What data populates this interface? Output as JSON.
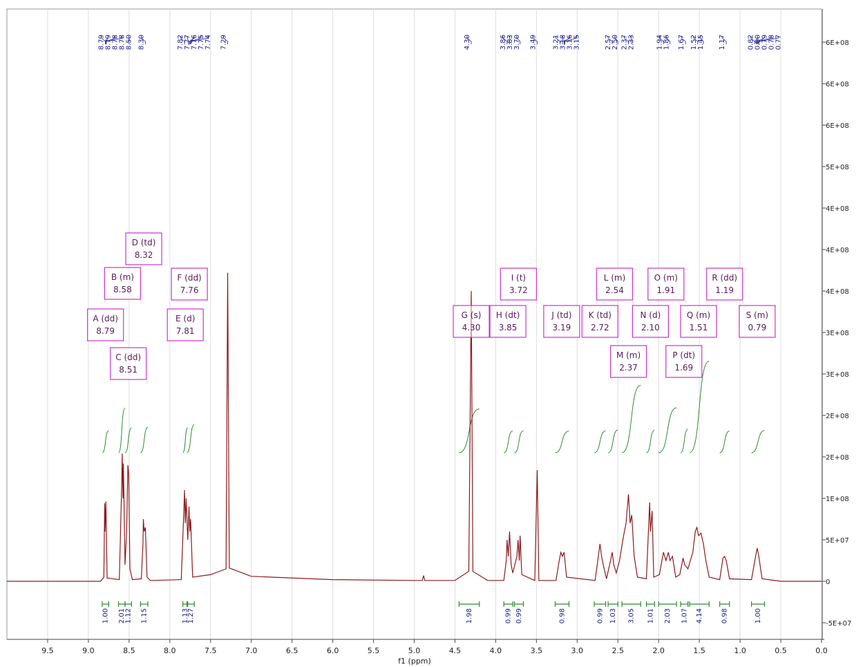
{
  "chart_data": {
    "type": "line",
    "xlabel": "f1 (ppm)",
    "xlim": [
      10,
      0
    ],
    "ylim": [
      -70000000,
      690000000
    ],
    "xticks": [
      9.5,
      {
        "value": 9,
        "label": "9.0"
      },
      8.5,
      {
        "value": 8,
        "label": "8.0"
      },
      7.5,
      {
        "value": 7,
        "label": "7.0"
      },
      6.5,
      {
        "value": 6,
        "label": "6.0"
      },
      5.5,
      {
        "value": 5,
        "label": "5.0"
      },
      4.5,
      {
        "value": 4,
        "label": "4.0"
      },
      3.5,
      {
        "value": 3,
        "label": "3.0"
      },
      2.5,
      {
        "value": 2,
        "label": "2.0"
      },
      1.5,
      {
        "value": 1,
        "label": "1.0"
      },
      0.5,
      {
        "value": 0,
        "label": "0.0"
      }
    ],
    "yticks": [
      {
        "value": -50000000,
        "label": "-5E+07"
      },
      0,
      {
        "value": 50000000,
        "label": "5E+07"
      },
      {
        "value": 100000000,
        "label": "1E+08"
      },
      {
        "value": 150000000,
        "label": "2E+08"
      },
      {
        "value": 200000000,
        "label": "2E+08"
      },
      {
        "value": 250000000,
        "label": "3E+08"
      },
      {
        "value": 300000000,
        "label": "3E+08"
      },
      {
        "value": 350000000,
        "label": "4E+08"
      },
      {
        "value": 400000000,
        "label": "4E+08"
      },
      {
        "value": 450000000,
        "label": "4E+08"
      },
      {
        "value": 500000000,
        "label": "5E+08"
      },
      {
        "value": 550000000,
        "label": "6E+08"
      },
      {
        "value": 600000000,
        "label": "6E+08"
      },
      {
        "value": 650000000,
        "label": "6E+08"
      }
    ],
    "xgrid": true,
    "series": [
      {
        "name": "spectrum",
        "color": "#8b1a1a",
        "x": [
          10.0,
          8.85,
          8.81,
          8.8,
          8.795,
          8.785,
          8.77,
          8.62,
          8.59,
          8.585,
          8.575,
          8.57,
          8.55,
          8.53,
          8.515,
          8.505,
          8.49,
          8.46,
          8.35,
          8.33,
          8.325,
          8.315,
          8.3,
          8.28,
          8.24,
          7.86,
          7.83,
          7.82,
          7.81,
          7.8,
          7.78,
          7.765,
          7.755,
          7.745,
          7.72,
          7.5,
          7.31,
          7.29,
          7.27,
          7.0,
          6.0,
          5.0,
          4.9,
          4.885,
          4.87,
          4.5,
          4.33,
          4.3,
          4.28,
          4.1,
          3.9,
          3.87,
          3.86,
          3.845,
          3.83,
          3.81,
          3.79,
          3.74,
          3.725,
          3.71,
          3.7,
          3.68,
          3.52,
          3.49,
          3.47,
          3.26,
          3.22,
          3.2,
          3.18,
          3.16,
          3.13,
          2.78,
          2.74,
          2.72,
          2.7,
          2.68,
          2.64,
          2.59,
          2.57,
          2.55,
          2.52,
          2.48,
          2.43,
          2.4,
          2.37,
          2.35,
          2.33,
          2.3,
          2.26,
          2.15,
          2.11,
          2.1,
          2.08,
          2.06,
          1.99,
          1.96,
          1.94,
          1.91,
          1.88,
          1.86,
          1.83,
          1.79,
          1.74,
          1.7,
          1.68,
          1.64,
          1.58,
          1.55,
          1.53,
          1.51,
          1.48,
          1.45,
          1.42,
          1.38,
          1.25,
          1.21,
          1.19,
          1.17,
          1.13,
          0.86,
          0.81,
          0.79,
          0.77,
          0.73,
          0.5,
          0.0
        ],
        "values": [
          0,
          0,
          5000000,
          94000000,
          60000000,
          96000000,
          4000000,
          2000000,
          120000000,
          154000000,
          100000000,
          142000000,
          20000000,
          60000000,
          140000000,
          130000000,
          15000000,
          2000000,
          3000000,
          45000000,
          75000000,
          60000000,
          65000000,
          5000000,
          1000000,
          2000000,
          80000000,
          110000000,
          70000000,
          100000000,
          50000000,
          90000000,
          60000000,
          75000000,
          5000000,
          8000000,
          15000000,
          372000000,
          16000000,
          6000000,
          2000000,
          1000000,
          1000000,
          7000000,
          1000000,
          1000000,
          12000000,
          350000000,
          12000000,
          1000000,
          1000000,
          25000000,
          50000000,
          30000000,
          60000000,
          20000000,
          10000000,
          30000000,
          50000000,
          25000000,
          55000000,
          8000000,
          1000000,
          134000000,
          1000000,
          1000000,
          25000000,
          35000000,
          30000000,
          35000000,
          5000000,
          1000000,
          30000000,
          45000000,
          30000000,
          20000000,
          3000000,
          25000000,
          35000000,
          20000000,
          10000000,
          25000000,
          55000000,
          70000000,
          105000000,
          70000000,
          80000000,
          30000000,
          5000000,
          3000000,
          95000000,
          60000000,
          85000000,
          5000000,
          8000000,
          25000000,
          35000000,
          25000000,
          35000000,
          25000000,
          30000000,
          5000000,
          8000000,
          28000000,
          20000000,
          15000000,
          35000000,
          60000000,
          65000000,
          55000000,
          58000000,
          45000000,
          25000000,
          5000000,
          2000000,
          28000000,
          30000000,
          25000000,
          3000000,
          2000000,
          30000000,
          40000000,
          30000000,
          3000000,
          0,
          0
        ]
      }
    ],
    "peak_labels": [
      8.79,
      8.79,
      8.78,
      8.78,
      {
        "value": 8.5,
        "label": "8.50"
      },
      {
        "value": 8.3,
        "label": "8.30"
      },
      7.82,
      7.77,
      7.76,
      7.75,
      7.74,
      7.29,
      {
        "value": 4.3,
        "label": "4.30"
      },
      3.86,
      3.83,
      {
        "value": 3.7,
        "label": "3.70"
      },
      3.49,
      3.21,
      3.18,
      3.16,
      3.15,
      2.57,
      {
        "value": 2.5,
        "label": "2.50"
      },
      2.37,
      2.33,
      1.94,
      1.86,
      1.67,
      1.52,
      1.45,
      1.17,
      0.82,
      {
        "value": 0.8,
        "label": "0.80"
      },
      0.79,
      0.78,
      0.77
    ],
    "multiplets": [
      {
        "label": "A (dd)",
        "shift": 8.79
      },
      {
        "label": "B (m)",
        "shift": 8.58
      },
      {
        "label": "C (dd)",
        "shift": 8.51
      },
      {
        "label": "D (td)",
        "shift": 8.32
      },
      {
        "label": "E (d)",
        "shift": 7.81
      },
      {
        "label": "F (dd)",
        "shift": 7.76
      },
      {
        "label": "G (s)",
        "shift": {
          "value": 4.3,
          "label": "4.30"
        }
      },
      {
        "label": "H (dt)",
        "shift": 3.85
      },
      {
        "label": "I (t)",
        "shift": 3.72
      },
      {
        "label": "J (td)",
        "shift": 3.19
      },
      {
        "label": "K (td)",
        "shift": 2.72
      },
      {
        "label": "L (m)",
        "shift": 2.54
      },
      {
        "label": "M (m)",
        "shift": 2.37
      },
      {
        "label": "N (d)",
        "shift": {
          "value": 2.1,
          "label": "2.10"
        }
      },
      {
        "label": "O (m)",
        "shift": 1.91
      },
      {
        "label": "P (dt)",
        "shift": 1.69
      },
      {
        "label": "Q (m)",
        "shift": 1.51
      },
      {
        "label": "R (dd)",
        "shift": 1.19
      },
      {
        "label": "S (m)",
        "shift": 0.79
      }
    ],
    "integrals": {
      "from": [
        8.83,
        8.63,
        8.55,
        8.36,
        7.84,
        7.79,
        4.45,
        3.9,
        3.77,
        3.27,
        2.79,
        2.62,
        2.45,
        2.15,
        2.0,
        1.73,
        1.62,
        1.25,
        0.86
      ],
      "to": [
        8.75,
        8.55,
        8.47,
        8.27,
        7.78,
        7.7,
        4.2,
        3.79,
        3.66,
        3.1,
        2.65,
        2.5,
        2.22,
        2.05,
        1.78,
        1.64,
        1.38,
        1.13,
        0.7
      ],
      "values": [
        1,
        2.01,
        1.12,
        1.15,
        1.13,
        1.27,
        1.98,
        0.99,
        0.99,
        0.98,
        0.99,
        1.03,
        3.05,
        1.01,
        2.03,
        1.07,
        4.14,
        0.98,
        1
      ],
      "value_labels": [
        "1.00",
        "2.01",
        "1.12",
        "1.15",
        "1.13",
        "1.27",
        "1.98",
        "0.99",
        "0.99",
        "0.98",
        "0.99",
        "1.03",
        "3.05",
        "1.01",
        "2.03",
        "1.07",
        "4.14",
        "0.98",
        "1.00"
      ]
    }
  }
}
